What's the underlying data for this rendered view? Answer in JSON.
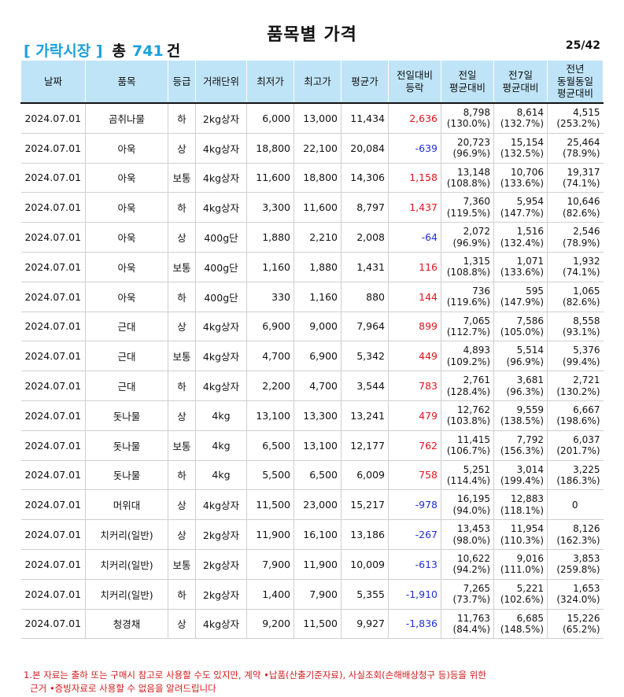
{
  "header": {
    "title": "품목별 가격",
    "market": "[ 가락시장 ]",
    "total_label": "총",
    "total_count": "741",
    "total_unit": "건",
    "page": "25/42"
  },
  "table": {
    "columns": [
      "날짜",
      "품목",
      "등급",
      "거래단위",
      "최저가",
      "최고가",
      "평균가",
      "전일대비\n등락",
      "전일\n평균대비",
      "전7일\n평균대비",
      "전년\n동월동일\n평균대비"
    ],
    "rows": [
      {
        "date": "2024.07.01",
        "item": "곰취나물",
        "grade": "하",
        "unit": "2kg상자",
        "min": "6,000",
        "max": "13,000",
        "avg": "11,434",
        "change": "2,636",
        "dir": "up",
        "prev_day": "8,798",
        "prev_day_pct": "(130.0%)",
        "prev7": "8,614",
        "prev7_pct": "(132.7%)",
        "prev_year": "4,515",
        "prev_year_pct": "(253.2%)"
      },
      {
        "date": "2024.07.01",
        "item": "아욱",
        "grade": "상",
        "unit": "4kg상자",
        "min": "18,800",
        "max": "22,100",
        "avg": "20,084",
        "change": "-639",
        "dir": "down",
        "prev_day": "20,723",
        "prev_day_pct": "(96.9%)",
        "prev7": "15,154",
        "prev7_pct": "(132.5%)",
        "prev_year": "25,464",
        "prev_year_pct": "(78.9%)"
      },
      {
        "date": "2024.07.01",
        "item": "아욱",
        "grade": "보통",
        "unit": "4kg상자",
        "min": "11,600",
        "max": "18,800",
        "avg": "14,306",
        "change": "1,158",
        "dir": "up",
        "prev_day": "13,148",
        "prev_day_pct": "(108.8%)",
        "prev7": "10,706",
        "prev7_pct": "(133.6%)",
        "prev_year": "19,317",
        "prev_year_pct": "(74.1%)"
      },
      {
        "date": "2024.07.01",
        "item": "아욱",
        "grade": "하",
        "unit": "4kg상자",
        "min": "3,300",
        "max": "11,600",
        "avg": "8,797",
        "change": "1,437",
        "dir": "up",
        "prev_day": "7,360",
        "prev_day_pct": "(119.5%)",
        "prev7": "5,954",
        "prev7_pct": "(147.7%)",
        "prev_year": "10,646",
        "prev_year_pct": "(82.6%)"
      },
      {
        "date": "2024.07.01",
        "item": "아욱",
        "grade": "상",
        "unit": "400g단",
        "min": "1,880",
        "max": "2,210",
        "avg": "2,008",
        "change": "-64",
        "dir": "down",
        "prev_day": "2,072",
        "prev_day_pct": "(96.9%)",
        "prev7": "1,516",
        "prev7_pct": "(132.4%)",
        "prev_year": "2,546",
        "prev_year_pct": "(78.9%)"
      },
      {
        "date": "2024.07.01",
        "item": "아욱",
        "grade": "보통",
        "unit": "400g단",
        "min": "1,160",
        "max": "1,880",
        "avg": "1,431",
        "change": "116",
        "dir": "up",
        "prev_day": "1,315",
        "prev_day_pct": "(108.8%)",
        "prev7": "1,071",
        "prev7_pct": "(133.6%)",
        "prev_year": "1,932",
        "prev_year_pct": "(74.1%)"
      },
      {
        "date": "2024.07.01",
        "item": "아욱",
        "grade": "하",
        "unit": "400g단",
        "min": "330",
        "max": "1,160",
        "avg": "880",
        "change": "144",
        "dir": "up",
        "prev_day": "736",
        "prev_day_pct": "(119.6%)",
        "prev7": "595",
        "prev7_pct": "(147.9%)",
        "prev_year": "1,065",
        "prev_year_pct": "(82.6%)"
      },
      {
        "date": "2024.07.01",
        "item": "근대",
        "grade": "상",
        "unit": "4kg상자",
        "min": "6,900",
        "max": "9,000",
        "avg": "7,964",
        "change": "899",
        "dir": "up",
        "prev_day": "7,065",
        "prev_day_pct": "(112.7%)",
        "prev7": "7,586",
        "prev7_pct": "(105.0%)",
        "prev_year": "8,558",
        "prev_year_pct": "(93.1%)"
      },
      {
        "date": "2024.07.01",
        "item": "근대",
        "grade": "보통",
        "unit": "4kg상자",
        "min": "4,700",
        "max": "6,900",
        "avg": "5,342",
        "change": "449",
        "dir": "up",
        "prev_day": "4,893",
        "prev_day_pct": "(109.2%)",
        "prev7": "5,514",
        "prev7_pct": "(96.9%)",
        "prev_year": "5,376",
        "prev_year_pct": "(99.4%)"
      },
      {
        "date": "2024.07.01",
        "item": "근대",
        "grade": "하",
        "unit": "4kg상자",
        "min": "2,200",
        "max": "4,700",
        "avg": "3,544",
        "change": "783",
        "dir": "up",
        "prev_day": "2,761",
        "prev_day_pct": "(128.4%)",
        "prev7": "3,681",
        "prev7_pct": "(96.3%)",
        "prev_year": "2,721",
        "prev_year_pct": "(130.2%)"
      },
      {
        "date": "2024.07.01",
        "item": "돗나물",
        "grade": "상",
        "unit": "4kg",
        "min": "13,100",
        "max": "13,300",
        "avg": "13,241",
        "change": "479",
        "dir": "up",
        "prev_day": "12,762",
        "prev_day_pct": "(103.8%)",
        "prev7": "9,559",
        "prev7_pct": "(138.5%)",
        "prev_year": "6,667",
        "prev_year_pct": "(198.6%)"
      },
      {
        "date": "2024.07.01",
        "item": "돗나물",
        "grade": "보통",
        "unit": "4kg",
        "min": "6,500",
        "max": "13,100",
        "avg": "12,177",
        "change": "762",
        "dir": "up",
        "prev_day": "11,415",
        "prev_day_pct": "(106.7%)",
        "prev7": "7,792",
        "prev7_pct": "(156.3%)",
        "prev_year": "6,037",
        "prev_year_pct": "(201.7%)"
      },
      {
        "date": "2024.07.01",
        "item": "돗나물",
        "grade": "하",
        "unit": "4kg",
        "min": "5,500",
        "max": "6,500",
        "avg": "6,009",
        "change": "758",
        "dir": "up",
        "prev_day": "5,251",
        "prev_day_pct": "(114.4%)",
        "prev7": "3,014",
        "prev7_pct": "(199.4%)",
        "prev_year": "3,225",
        "prev_year_pct": "(186.3%)"
      },
      {
        "date": "2024.07.01",
        "item": "머위대",
        "grade": "상",
        "unit": "4kg상자",
        "min": "11,500",
        "max": "23,000",
        "avg": "15,217",
        "change": "-978",
        "dir": "down",
        "prev_day": "16,195",
        "prev_day_pct": "(94.0%)",
        "prev7": "12,883",
        "prev7_pct": "(118.1%)",
        "prev_year": "0",
        "prev_year_pct": ""
      },
      {
        "date": "2024.07.01",
        "item": "치커리(일반)",
        "grade": "상",
        "unit": "2kg상자",
        "min": "11,900",
        "max": "16,100",
        "avg": "13,186",
        "change": "-267",
        "dir": "down",
        "prev_day": "13,453",
        "prev_day_pct": "(98.0%)",
        "prev7": "11,954",
        "prev7_pct": "(110.3%)",
        "prev_year": "8,126",
        "prev_year_pct": "(162.3%)"
      },
      {
        "date": "2024.07.01",
        "item": "치커리(일반)",
        "grade": "보통",
        "unit": "2kg상자",
        "min": "7,900",
        "max": "11,900",
        "avg": "10,009",
        "change": "-613",
        "dir": "down",
        "prev_day": "10,622",
        "prev_day_pct": "(94.2%)",
        "prev7": "9,016",
        "prev7_pct": "(111.0%)",
        "prev_year": "3,853",
        "prev_year_pct": "(259.8%)"
      },
      {
        "date": "2024.07.01",
        "item": "치커리(일반)",
        "grade": "하",
        "unit": "2kg상자",
        "min": "1,400",
        "max": "7,900",
        "avg": "5,355",
        "change": "-1,910",
        "dir": "down",
        "prev_day": "7,265",
        "prev_day_pct": "(73.7%)",
        "prev7": "5,221",
        "prev7_pct": "(102.6%)",
        "prev_year": "1,653",
        "prev_year_pct": "(324.0%)"
      },
      {
        "date": "2024.07.01",
        "item": "청경채",
        "grade": "상",
        "unit": "4kg상자",
        "min": "9,200",
        "max": "11,500",
        "avg": "9,927",
        "change": "-1,836",
        "dir": "down",
        "prev_day": "11,763",
        "prev_day_pct": "(84.4%)",
        "prev7": "6,685",
        "prev7_pct": "(148.5%)",
        "prev_year": "15,226",
        "prev_year_pct": "(65.2%)"
      }
    ]
  },
  "footer": {
    "note_line1": "1.본 자료는 출하 또는 구매시 참고로 사용할 수도 있지만, 계약 •납품(산출기준자료), 사실조회(손해배상청구 등)등을 위한",
    "note_line2": "근거 •증빙자료로 사용할 수 없음을 알려드립니다"
  },
  "colors": {
    "header_bg": "#bfe4f7",
    "accent": "#1aa0dc",
    "up": "#e0141e",
    "down": "#1f2fd4",
    "note": "#d21b1b"
  }
}
